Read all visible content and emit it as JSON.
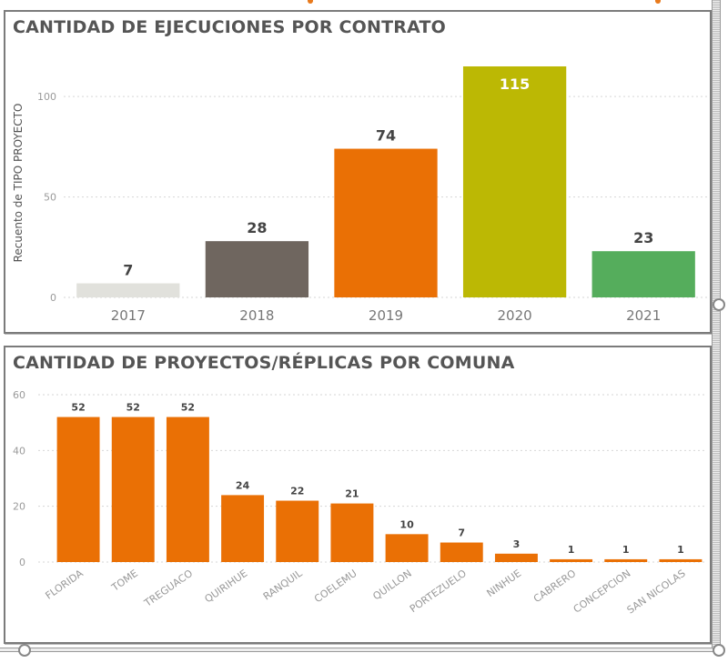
{
  "chart_data": [
    {
      "type": "bar",
      "title": "CANTIDAD DE EJECUCIONES POR CONTRATO",
      "xlabel": "",
      "ylabel": "Recuento de TIPO PROYECTO",
      "categories": [
        "2017",
        "2018",
        "2019",
        "2020",
        "2021"
      ],
      "values": [
        7,
        28,
        74,
        115,
        23
      ],
      "data_labels": [
        "7",
        "28",
        "74",
        "115",
        "23"
      ],
      "colors": [
        "#e1e1dc",
        "#6f665f",
        "#ea7005",
        "#bcb804",
        "#55ad5c"
      ],
      "yticks": [
        "0",
        "50",
        "100"
      ],
      "ylim": [
        0,
        115
      ],
      "grid": true
    },
    {
      "type": "bar",
      "title": "CANTIDAD DE PROYECTOS/RÉPLICAS POR COMUNA",
      "xlabel": "",
      "ylabel": "",
      "categories": [
        "FLORIDA",
        "TOME",
        "TREGUACO",
        "QUIRIHUE",
        "RANQUIL",
        "COELEMU",
        "QUILLON",
        "PORTEZUELO",
        "NINHUE",
        "CABRERO",
        "CONCEPCION",
        "SAN NICOLAS"
      ],
      "values": [
        52,
        52,
        52,
        24,
        22,
        21,
        10,
        7,
        3,
        1,
        1,
        1
      ],
      "data_labels": [
        "52",
        "52",
        "52",
        "24",
        "22",
        "21",
        "10",
        "7",
        "3",
        "1",
        "1",
        "1"
      ],
      "color": "#ea7005",
      "yticks": [
        "0",
        "20",
        "40",
        "60"
      ],
      "ylim": [
        0,
        60
      ],
      "grid": true
    }
  ]
}
